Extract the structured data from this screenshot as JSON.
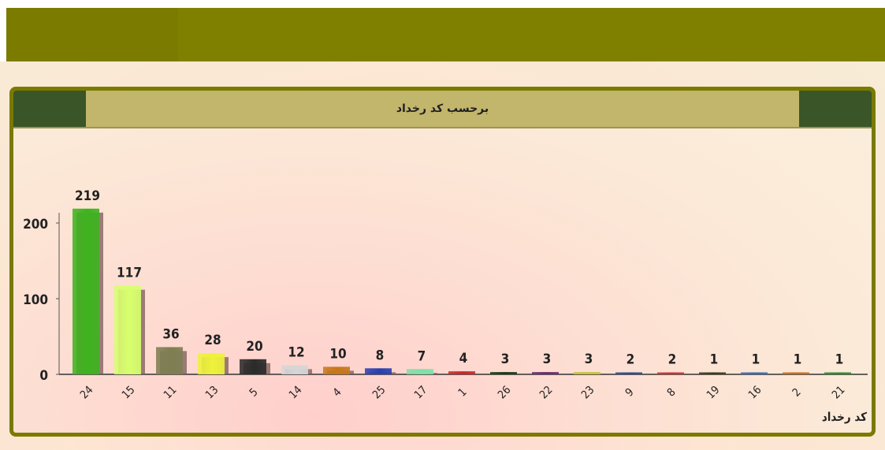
{
  "chart_data": {
    "type": "bar",
    "title": "برحسب کد رخداد",
    "xlabel": "کد رخداد",
    "ylabel": "",
    "categories": [
      "24",
      "15",
      "11",
      "13",
      "5",
      "14",
      "4",
      "25",
      "17",
      "1",
      "26",
      "22",
      "23",
      "9",
      "8",
      "19",
      "16",
      "2",
      "21"
    ],
    "values": [
      219,
      117,
      36,
      28,
      20,
      12,
      10,
      8,
      7,
      4,
      3,
      3,
      3,
      2,
      2,
      1,
      1,
      1,
      1
    ],
    "colors": [
      "#3fb21f",
      "#d8ff6e",
      "#7e7e52",
      "#eef23a",
      "#2b2b2b",
      "#d6d6d6",
      "#c8761a",
      "#2a3fb0",
      "#7ee0a8",
      "#c82828",
      "#153a15",
      "#6a2a70",
      "#c8c23a",
      "#2b4a8a",
      "#c83232",
      "#3a3a1a",
      "#3a6ab0",
      "#c86a1a",
      "#2a8a2a"
    ],
    "yticks": [
      0,
      100,
      200
    ],
    "ylim": [
      0,
      219
    ],
    "grid": false,
    "legend": "none"
  }
}
